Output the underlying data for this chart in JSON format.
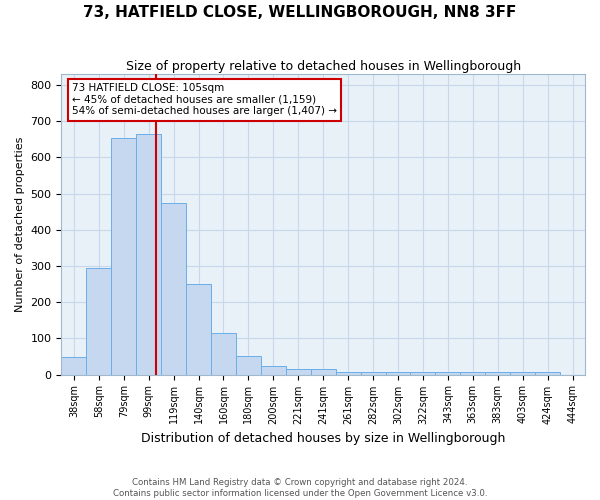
{
  "title1": "73, HATFIELD CLOSE, WELLINGBOROUGH, NN8 3FF",
  "title2": "Size of property relative to detached houses in Wellingborough",
  "xlabel": "Distribution of detached houses by size in Wellingborough",
  "ylabel": "Number of detached properties",
  "footnote1": "Contains HM Land Registry data © Crown copyright and database right 2024.",
  "footnote2": "Contains public sector information licensed under the Open Government Licence v3.0.",
  "bin_labels": [
    "38sqm",
    "58sqm",
    "79sqm",
    "99sqm",
    "119sqm",
    "140sqm",
    "160sqm",
    "180sqm",
    "200sqm",
    "221sqm",
    "241sqm",
    "261sqm",
    "282sqm",
    "302sqm",
    "322sqm",
    "343sqm",
    "363sqm",
    "383sqm",
    "403sqm",
    "424sqm",
    "444sqm"
  ],
  "bar_heights": [
    48,
    295,
    655,
    665,
    475,
    250,
    115,
    52,
    25,
    15,
    15,
    6,
    6,
    6,
    6,
    6,
    6,
    6,
    6,
    6,
    0
  ],
  "bar_color": "#c5d8f0",
  "bar_edge_color": "#6aaee8",
  "grid_color": "#c8d8e8",
  "background_color": "#e8f0f8",
  "annotation_line1": "73 HATFIELD CLOSE: 105sqm",
  "annotation_line2": "← 45% of detached houses are smaller (1,159)",
  "annotation_line3": "54% of semi-detached houses are larger (1,407) →",
  "annotation_border_color": "#cc0000",
  "vline_color": "#cc0000",
  "vline_position": 3.3,
  "ylim_min": 0,
  "ylim_max": 830,
  "yticks": [
    0,
    100,
    200,
    300,
    400,
    500,
    600,
    700,
    800
  ]
}
